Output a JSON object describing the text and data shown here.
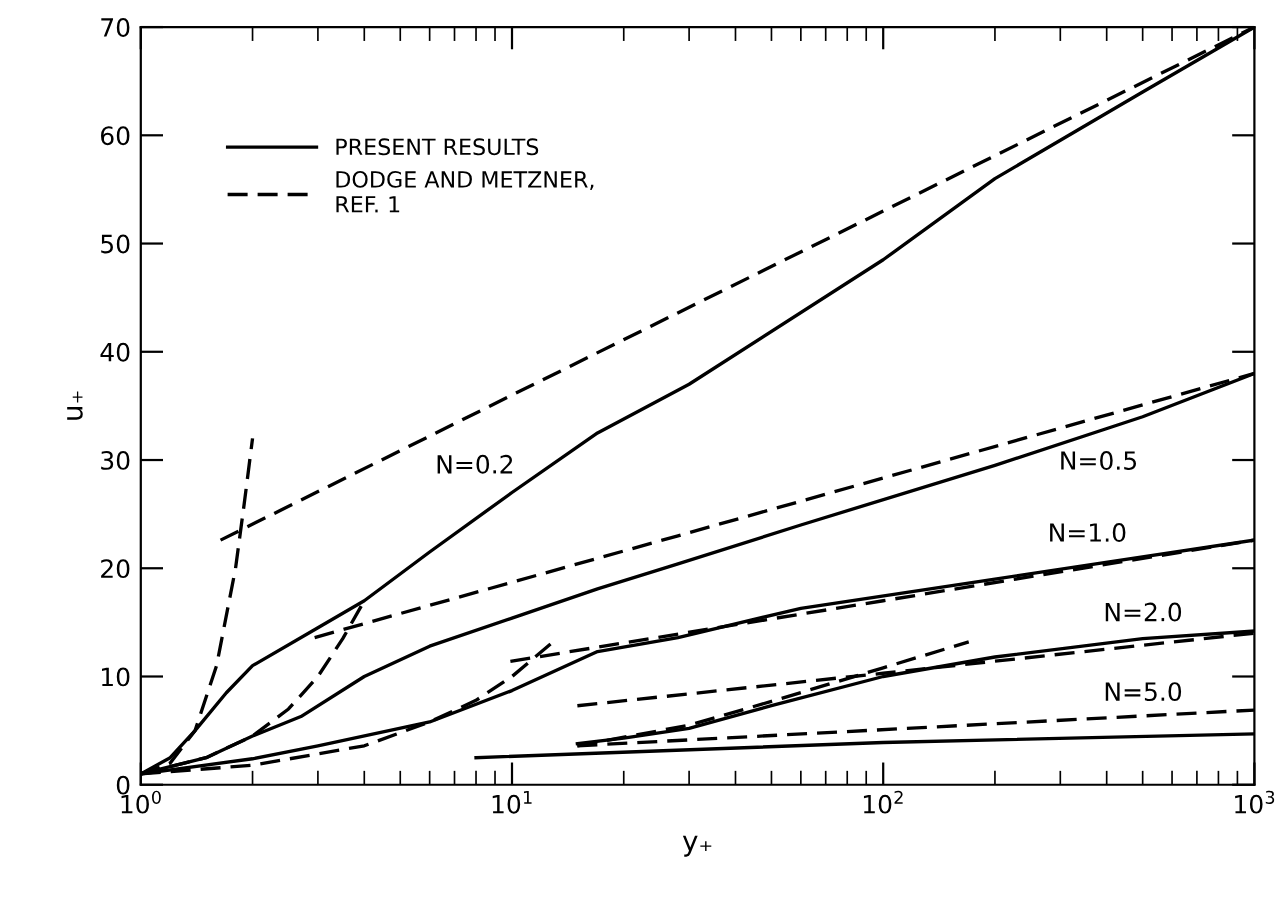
{
  "chart_data": {
    "type": "line",
    "xlabel": "y₊",
    "ylabel": "u₊",
    "log": "x",
    "xlim": [
      1,
      1000
    ],
    "ylim": [
      0,
      70
    ],
    "xticks": [
      {
        "value": 1,
        "label": "10$^{0}$"
      },
      {
        "value": 10,
        "label": "10$^{1}$"
      },
      {
        "value": 100,
        "label": "10$^{2}$"
      },
      {
        "value": 1000,
        "label": "10$^{3}$"
      }
    ],
    "yticks": [
      0,
      10,
      20,
      30,
      40,
      50,
      60,
      70
    ],
    "grid": false,
    "legend": "top left",
    "marker": "none",
    "series": [
      {
        "name": "PRESENT RESULTS",
        "color": "#000000",
        "line_style": "solid",
        "x": [
          1,
          1.2,
          1.4,
          1.7,
          2,
          3,
          4,
          6,
          10,
          17,
          30,
          100,
          200,
          500,
          1000
        ],
        "values": [
          1,
          2.5,
          5,
          8.5,
          11,
          14.5,
          17,
          21.5,
          27,
          32.5,
          37,
          48.5,
          56,
          64,
          70
        ]
      },
      {
        "name": "DODGE AND METZNER,\nREF. 1",
        "color": "#000000",
        "line_style": "dashed",
        "x": [
          1.64,
          10,
          100,
          1000
        ],
        "values": [
          22.6,
          36,
          53,
          70
        ]
      },
      {
        "color": "#000000",
        "line_style": "dashed",
        "x": [
          1,
          1.2,
          1.4,
          1.6,
          1.8,
          1.9,
          2
        ],
        "values": [
          1,
          2,
          5,
          11,
          20,
          26,
          32
        ]
      },
      {
        "color": "#000000",
        "line_style": "solid",
        "x": [
          1,
          1.5,
          2,
          2.7,
          4,
          6,
          10,
          17,
          28,
          60,
          200,
          500,
          1000
        ],
        "values": [
          1,
          2.5,
          4.5,
          6.3,
          10,
          12.8,
          15.4,
          18.1,
          20.4,
          24,
          29.5,
          34,
          38
        ]
      },
      {
        "color": "#000000",
        "line_style": "dashed",
        "x": [
          1,
          1.5,
          2,
          2.5,
          3,
          3.5,
          4
        ],
        "values": [
          1,
          2.5,
          4.5,
          7,
          10,
          13.5,
          17
        ]
      },
      {
        "color": "#000000",
        "line_style": "dashed",
        "x": [
          2.94,
          28,
          1000
        ],
        "values": [
          13.6,
          23,
          38
        ]
      },
      {
        "color": "#000000",
        "line_style": "solid",
        "x": [
          1,
          2,
          3,
          6,
          10,
          17,
          28,
          60,
          200,
          1000
        ],
        "values": [
          1,
          2.4,
          3.6,
          5.8,
          8.7,
          12.3,
          13.6,
          16.3,
          19,
          22.6
        ]
      },
      {
        "color": "#000000",
        "line_style": "dashed",
        "x": [
          1,
          2,
          4,
          6,
          8,
          10,
          12.7
        ],
        "values": [
          1,
          1.8,
          3.6,
          5.8,
          7.8,
          10,
          13
        ]
      },
      {
        "color": "#000000",
        "line_style": "dashed",
        "x": [
          9.9,
          100,
          1000
        ],
        "values": [
          11.4,
          17,
          22.6
        ]
      },
      {
        "color": "#000000",
        "line_style": "solid",
        "x": [
          15,
          20,
          30,
          50,
          100,
          200,
          500,
          1000
        ],
        "values": [
          3.8,
          4.3,
          5.2,
          7.3,
          10,
          11.8,
          13.5,
          14.2
        ]
      },
      {
        "color": "#000000",
        "line_style": "dashed",
        "x": [
          15,
          30,
          50,
          100,
          170
        ],
        "values": [
          3.6,
          5.5,
          7.7,
          10.8,
          13.2
        ]
      },
      {
        "color": "#000000",
        "line_style": "dashed",
        "x": [
          15,
          100,
          1000
        ],
        "values": [
          7.3,
          10.3,
          14
        ]
      },
      {
        "color": "#000000",
        "line_style": "solid",
        "x": [
          8,
          100,
          1000
        ],
        "values": [
          2.5,
          3.9,
          4.7
        ]
      },
      {
        "color": "#000000",
        "line_style": "dashed",
        "x": [
          15,
          1000
        ],
        "values": [
          3.6,
          6.9
        ]
      }
    ],
    "annotations": [
      "N=0.2",
      "N=0.5",
      "N=1.0",
      "N=2.0",
      "N=5.0"
    ]
  }
}
